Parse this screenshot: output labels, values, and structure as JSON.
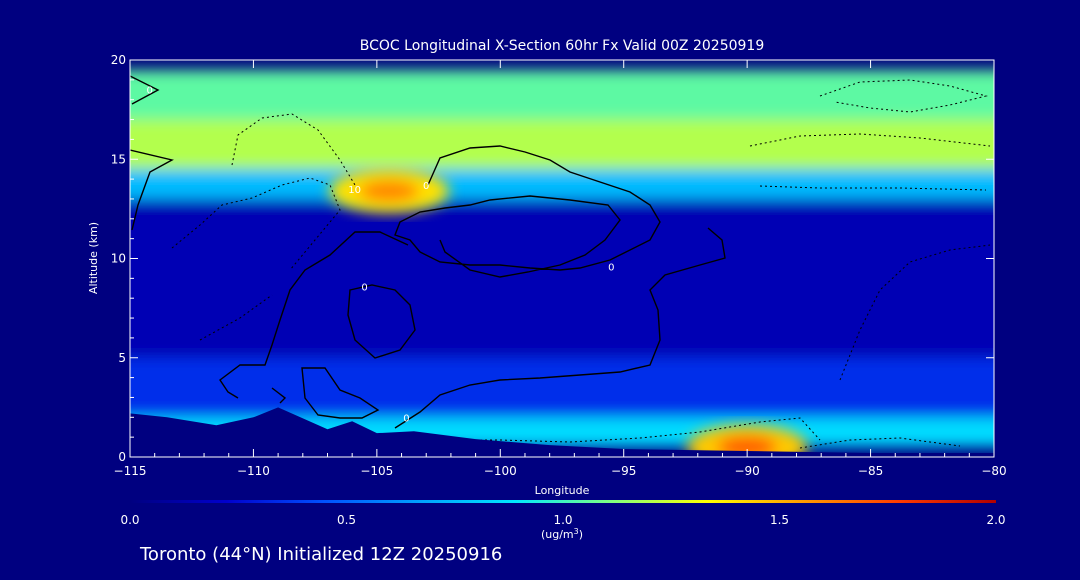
{
  "chart_data": {
    "type": "heatmap",
    "title": "BCOC Longitudinal X-Section 60hr  Fx Valid 00Z 20250919",
    "xlabel": "Longitude",
    "ylabel": "Altitude (km)",
    "xlim": [
      -115,
      -80
    ],
    "ylim": [
      0,
      20
    ],
    "x_ticks": [
      -115,
      -110,
      -105,
      -100,
      -95,
      -90,
      -85,
      -80
    ],
    "x_tick_labels": [
      "−115",
      "−110",
      "−105",
      "−100",
      "−95",
      "−90",
      "−85",
      "−80"
    ],
    "y_ticks": [
      0,
      5,
      10,
      15,
      20
    ],
    "y_tick_labels": [
      "0",
      "5",
      "10",
      "15",
      "20"
    ],
    "colorbar": {
      "ticks": [
        0.0,
        0.5,
        1.0,
        1.5,
        2.0
      ],
      "tick_labels": [
        "0.0",
        "0.5",
        "1.0",
        "1.5",
        "2.0"
      ],
      "unit_prefix": "(ug/m",
      "unit_exp": "3",
      "unit_suffix": ")",
      "colors": [
        "#000080",
        "#0000cd",
        "#0050ff",
        "#00a0ff",
        "#00e8ff",
        "#80ff80",
        "#ffff00",
        "#ff9a00",
        "#ff3a00",
        "#b00000"
      ]
    },
    "bands": [
      {
        "alt": [
          17.0,
          19.5
        ],
        "value": 1.05
      },
      {
        "alt": [
          14.5,
          17.0
        ],
        "value": 1.2
      },
      {
        "alt": [
          13.0,
          14.5
        ],
        "value": 0.75
      },
      {
        "alt": [
          5.0,
          13.0
        ],
        "value": 0.15
      },
      {
        "alt": [
          2.0,
          5.0
        ],
        "value": 0.35
      },
      {
        "alt": [
          0.5,
          2.0
        ],
        "value": 0.85
      }
    ],
    "hotspots": [
      {
        "lon": -104.5,
        "alt": 13.4,
        "value": 1.6
      },
      {
        "lon": -90.0,
        "alt": 0.5,
        "value": 1.7
      }
    ],
    "contour_labels": [
      {
        "text": "0",
        "lon": -114.2,
        "alt": 18.3
      },
      {
        "text": "0",
        "lon": -103.0,
        "alt": 13.5
      },
      {
        "text": "0",
        "lon": -95.5,
        "alt": 9.4
      },
      {
        "text": "0",
        "lon": -105.5,
        "alt": 8.4
      },
      {
        "text": "0",
        "lon": -103.8,
        "alt": 1.8
      },
      {
        "text": "10",
        "lon": -105.9,
        "alt": 13.3
      }
    ],
    "terrain_profile": [
      [
        -115,
        2.2
      ],
      [
        -113.5,
        2.0
      ],
      [
        -111.5,
        1.6
      ],
      [
        -110,
        2.0
      ],
      [
        -109,
        2.5
      ],
      [
        -107,
        1.4
      ],
      [
        -106,
        1.8
      ],
      [
        -105,
        1.2
      ],
      [
        -103.5,
        1.3
      ],
      [
        -101,
        0.9
      ],
      [
        -98,
        0.6
      ],
      [
        -95,
        0.4
      ],
      [
        -90,
        0.3
      ],
      [
        -85,
        0.2
      ],
      [
        -80,
        0.2
      ]
    ],
    "subtitle": "Toronto (44°N) Initialized 12Z 20250916"
  }
}
